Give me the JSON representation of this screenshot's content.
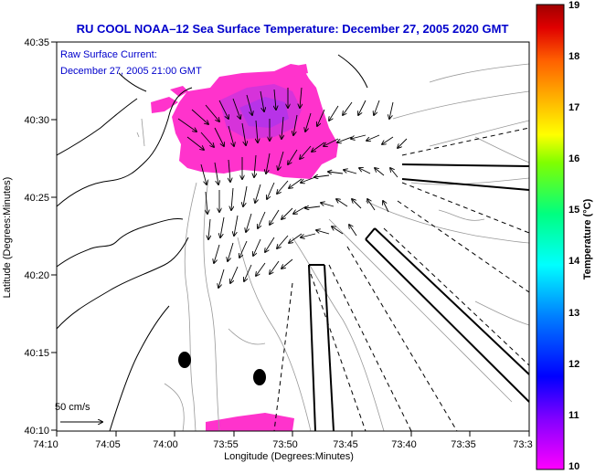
{
  "title": "RU COOL   NOAA–12  Sea Surface Temperature:  December 27, 2005 2020 GMT",
  "current_label": "Raw Surface Current:",
  "current_time": "December 27, 2005 21:00 GMT",
  "scale_label": "50 cm/s",
  "x_axis_label": "Longitude (Degrees:Minutes)",
  "y_axis_label": "Latitude (Degrees:Minutes)",
  "x_ticks": [
    "74:10",
    "74:05",
    "74:00",
    "73:55",
    "73:50",
    "73:45",
    "73:40",
    "73:35",
    "73:3"
  ],
  "y_ticks": [
    "40:35",
    "40:30",
    "40:25",
    "40:20",
    "40:15",
    "40:10"
  ],
  "colorbar": {
    "label": "Temperature (°C)",
    "min": 10,
    "max": 19,
    "ticks": [
      "19",
      "18",
      "17",
      "16",
      "15",
      "14",
      "13",
      "12",
      "11",
      "10"
    ]
  },
  "colors": {
    "title": "#0000cc",
    "sst": "#ff33cc",
    "land": "#ffffff"
  }
}
